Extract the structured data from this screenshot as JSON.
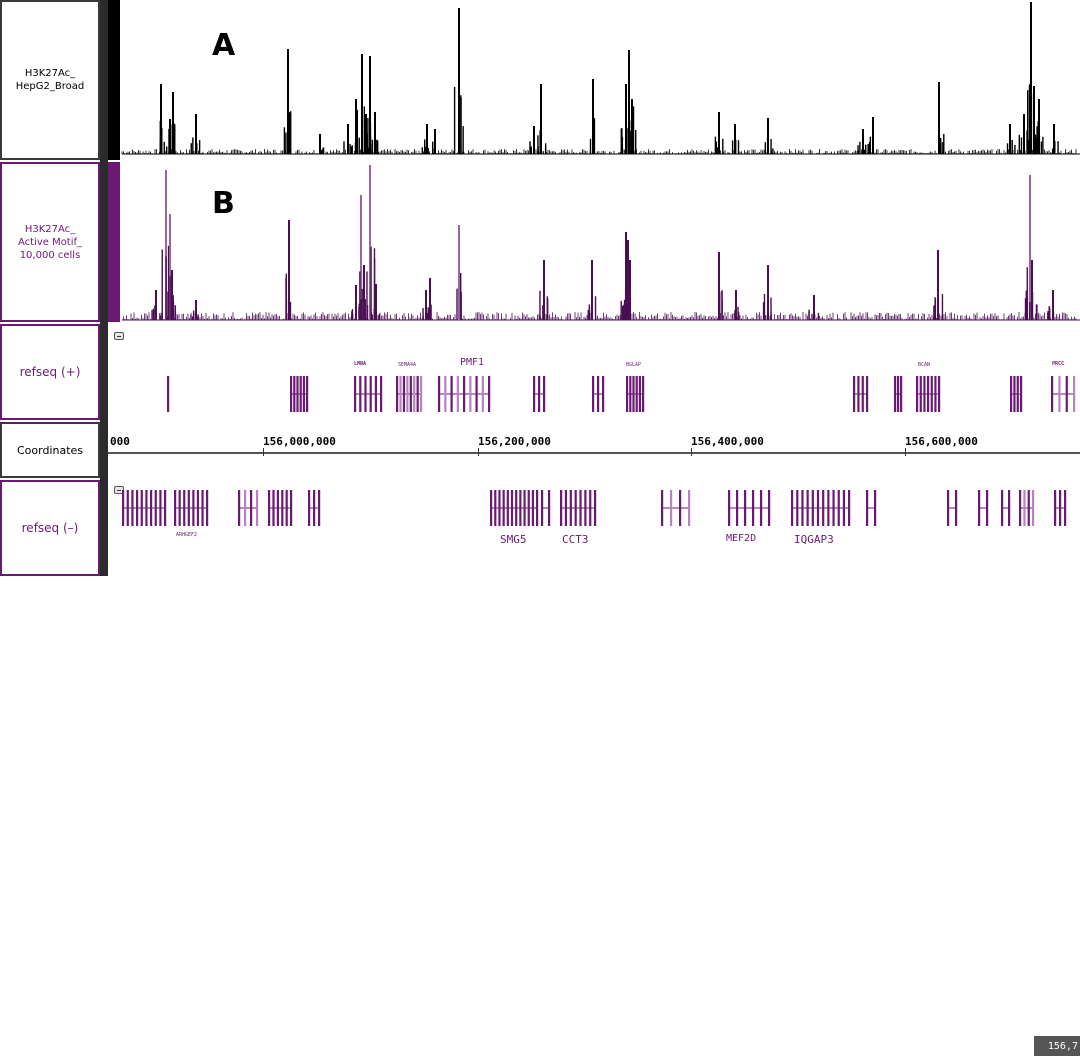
{
  "tracks": {
    "a": {
      "label": "H3K27Ac_\nHepG2_Broad",
      "color": "#000000"
    },
    "b": {
      "label": "H3K27Ac_\nActive Motif_\n10,000 cells",
      "color": "#6b1a73"
    },
    "refseq_plus": {
      "label": "refseq (+)"
    },
    "coordinates": {
      "label": "Coordinates"
    },
    "refseq_minus": {
      "label": "refseq (–)"
    }
  },
  "panel_letters": {
    "a": "A",
    "b": "B"
  },
  "coordinate_ticks": [
    "000",
    "156,000,000",
    "156,200,000",
    "156,400,000",
    "156,600,000"
  ],
  "end_coordinate": "156,7",
  "genes_plus": [
    {
      "name": "LMNA",
      "tiny": true
    },
    {
      "name": "SEMA4A",
      "tiny": true
    },
    {
      "name": "PMF1",
      "tiny": false
    },
    {
      "name": "BGLAP",
      "tiny": true
    },
    {
      "name": "BCAN",
      "tiny": true
    },
    {
      "name": "PRCC",
      "tiny": true
    }
  ],
  "genes_minus": [
    {
      "name": "ARHGEF2",
      "tiny": true
    },
    {
      "name": "SMG5",
      "tiny": false
    },
    {
      "name": "CCT3",
      "tiny": false
    },
    {
      "name": "MEF2D",
      "tiny": false
    },
    {
      "name": "IQGAP3",
      "tiny": false
    }
  ],
  "colors": {
    "gene": "#6b1a73",
    "gene_light": "#b685bd",
    "signal_a": "#000000",
    "signal_b": "#4a0f52",
    "signal_b_light": "#9b63a3"
  }
}
